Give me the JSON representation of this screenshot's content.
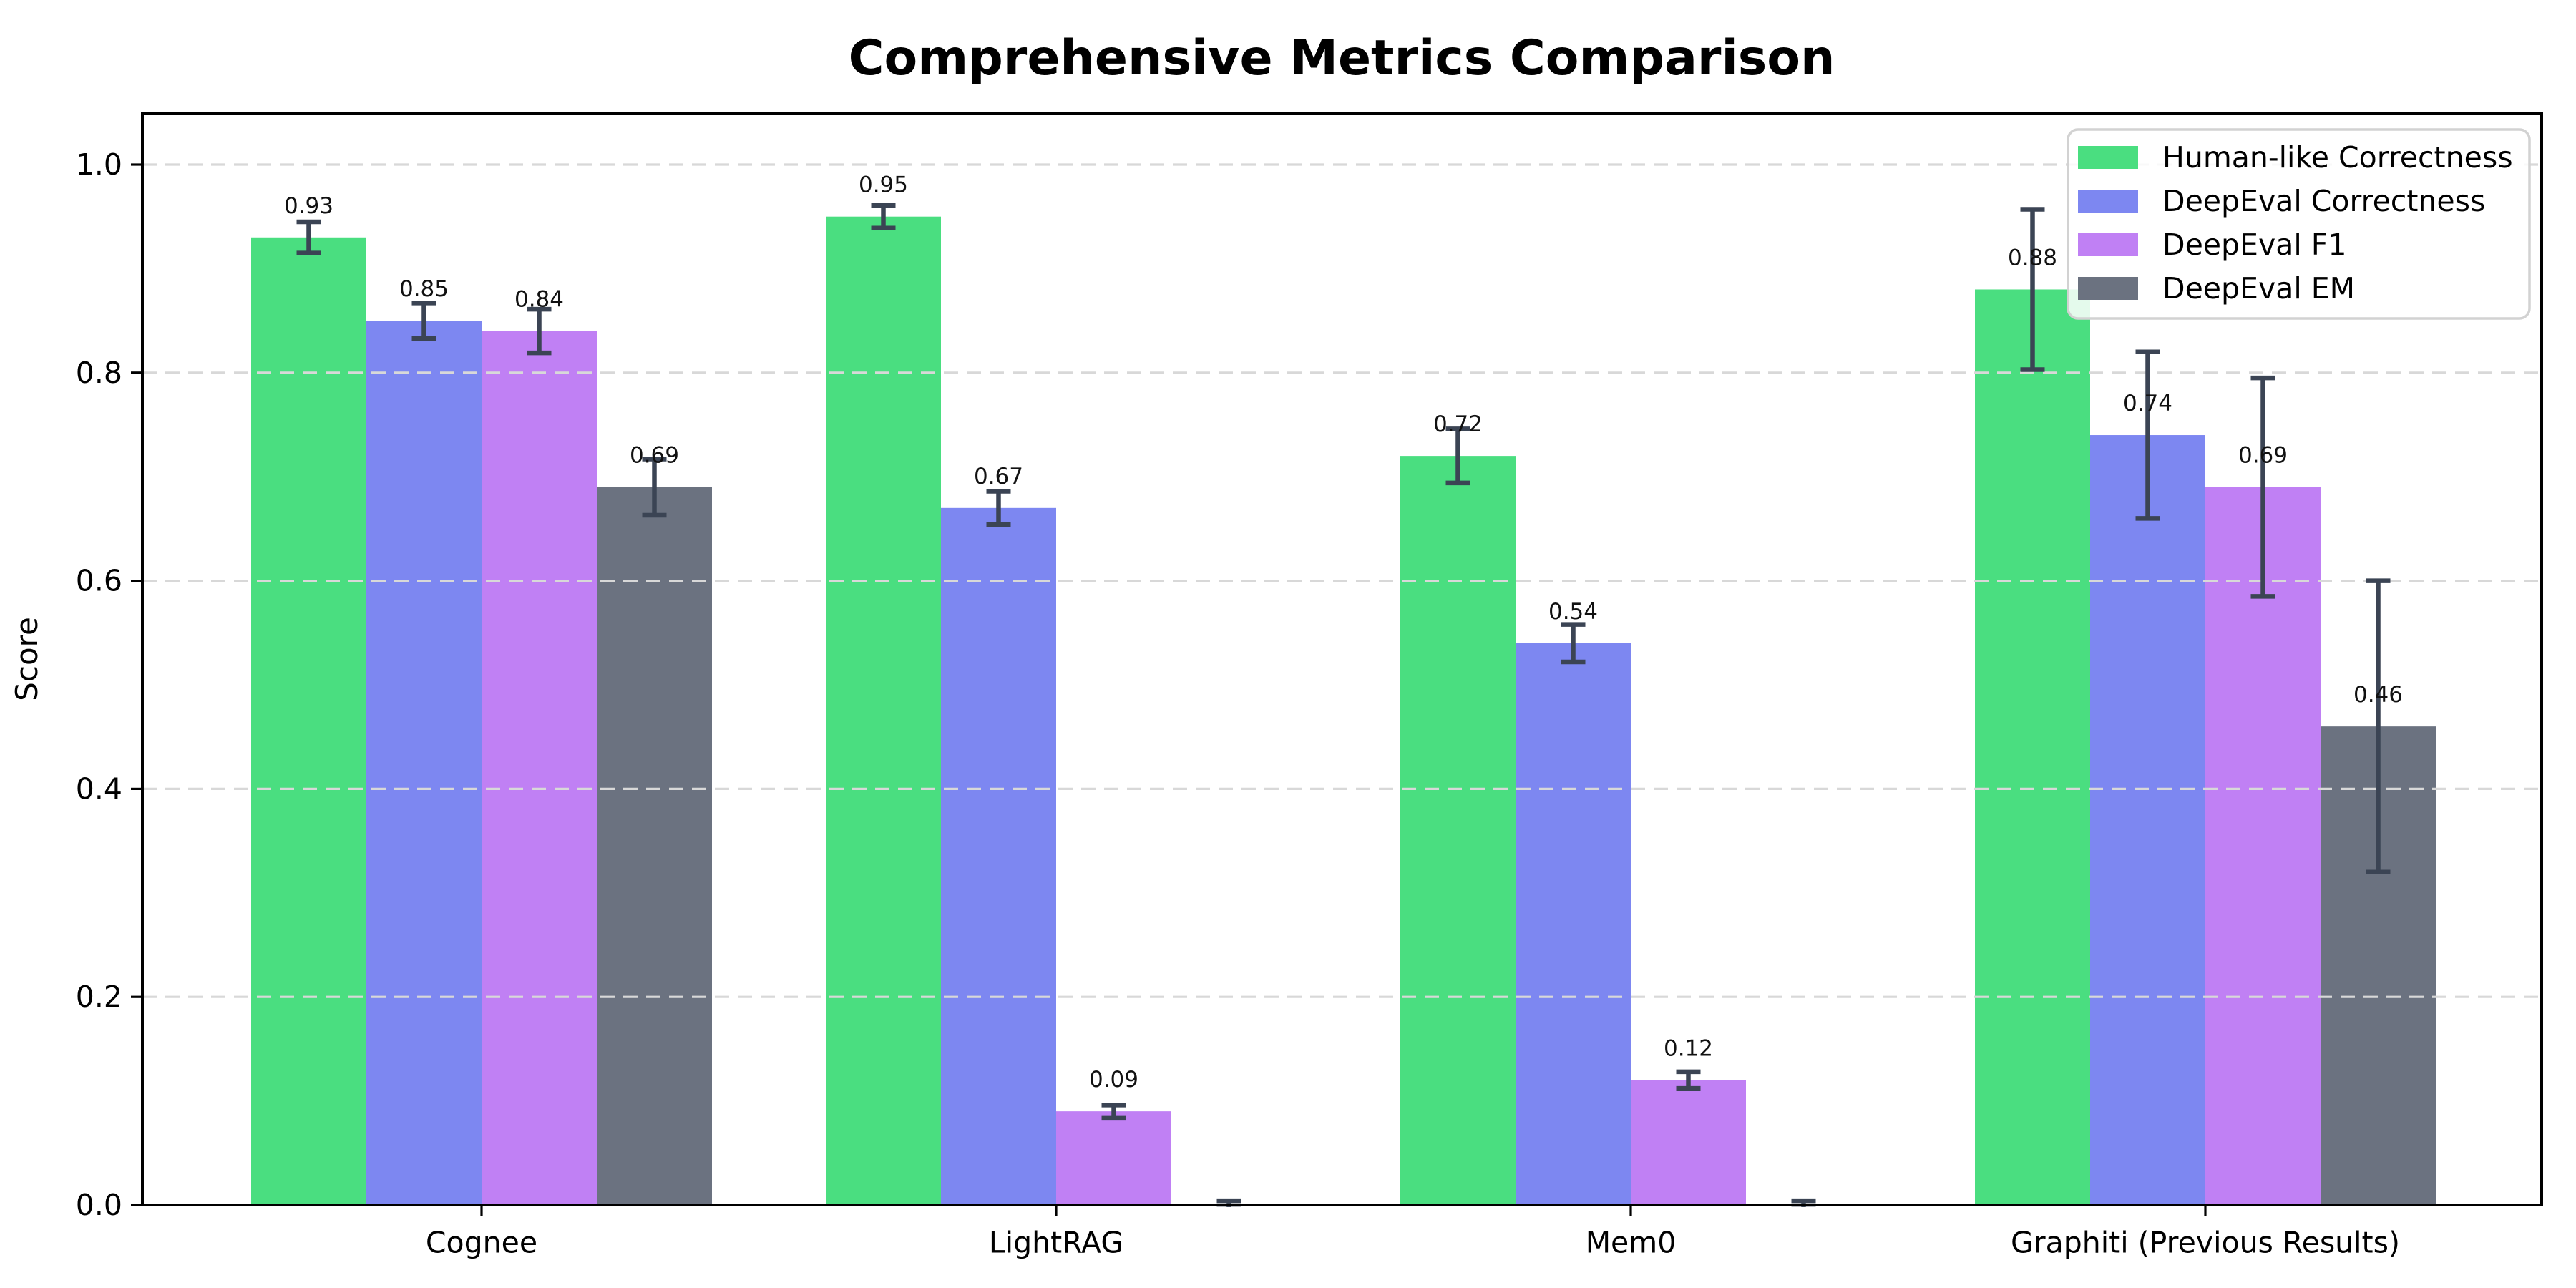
{
  "chart_data": {
    "type": "bar",
    "title": "Comprehensive Metrics Comparison",
    "xlabel": "",
    "ylabel": "Score",
    "categories": [
      "Cognee",
      "LightRAG",
      "Mem0",
      "Graphiti (Previous Results)"
    ],
    "series": [
      {
        "name": "Human-like Correctness",
        "color": "#4ade80",
        "values": [
          0.93,
          0.95,
          0.72,
          0.88
        ],
        "errors": [
          0.015,
          0.011,
          0.026,
          0.077
        ],
        "value_labels": [
          "0.93",
          "0.95",
          "0.72",
          "0.88"
        ]
      },
      {
        "name": "DeepEval Correctness",
        "color": "#7d87f1",
        "values": [
          0.85,
          0.67,
          0.54,
          0.74
        ],
        "errors": [
          0.017,
          0.016,
          0.018,
          0.08
        ],
        "value_labels": [
          "0.85",
          "0.67",
          "0.54",
          "0.74"
        ]
      },
      {
        "name": "DeepEval F1",
        "color": "#c080f4",
        "values": [
          0.84,
          0.09,
          0.12,
          0.69
        ],
        "errors": [
          0.021,
          0.006,
          0.008,
          0.105
        ],
        "value_labels": [
          "0.84",
          "0.09",
          "0.12",
          "0.69"
        ]
      },
      {
        "name": "DeepEval EM",
        "color": "#6b7280",
        "values": [
          0.69,
          0.0,
          0.0,
          0.46
        ],
        "errors": [
          0.027,
          0.004,
          0.004,
          0.14
        ],
        "value_labels": [
          "0.69",
          "",
          "",
          "0.46"
        ]
      }
    ],
    "yticks": [
      0.0,
      0.2,
      0.4,
      0.6,
      0.8,
      1.0
    ],
    "ytick_labels": [
      "0.0",
      "0.2",
      "0.4",
      "0.6",
      "0.8",
      "1.0"
    ],
    "ylim": [
      0,
      1.049
    ],
    "grid": "horizontal-dashed",
    "legend_position": "upper right",
    "colors": {
      "background": "#ffffff",
      "grid": "#d8d8d8",
      "axis": "#000000",
      "errorbar": "#3b4454",
      "legend_border": "#d2d2d2",
      "legend_background": "#ffffff"
    }
  }
}
